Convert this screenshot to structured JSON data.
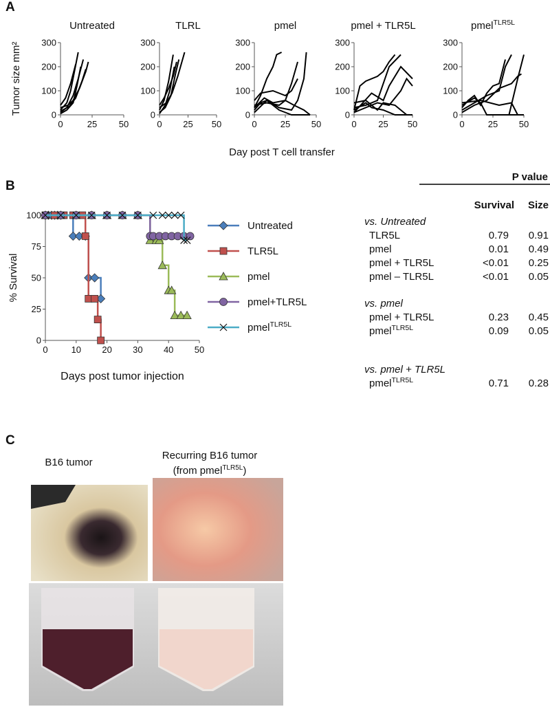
{
  "panel_labels": [
    "A",
    "B",
    "C"
  ],
  "panel_a": {
    "x_label": "Day post T cell transfer"
  },
  "chart_data": [
    {
      "type": "line",
      "title": "Untreated",
      "y_label": "Tumor size mm²",
      "xlim": [
        0,
        50
      ],
      "xticks": [
        0,
        25,
        50
      ],
      "ylim": [
        0,
        300
      ],
      "yticks": [
        0,
        100,
        200,
        300
      ],
      "series": [
        {
          "color": "#000000",
          "x": [
            0,
            5,
            8,
            11,
            14
          ],
          "values": [
            20,
            50,
            100,
            180,
            260
          ]
        },
        {
          "color": "#000000",
          "x": [
            0,
            5,
            10,
            14,
            18
          ],
          "values": [
            10,
            30,
            80,
            150,
            230
          ]
        },
        {
          "color": "#000000",
          "x": [
            0,
            6,
            10,
            15,
            20,
            22
          ],
          "values": [
            30,
            40,
            60,
            110,
            180,
            220
          ]
        },
        {
          "color": "#000000",
          "x": [
            0,
            5,
            10,
            13,
            16
          ],
          "values": [
            5,
            20,
            50,
            120,
            200
          ]
        },
        {
          "color": "#000000",
          "x": [
            0,
            4,
            8,
            12
          ],
          "values": [
            40,
            70,
            130,
            210
          ]
        },
        {
          "color": "#000000",
          "x": [
            0,
            7,
            12,
            17,
            20
          ],
          "values": [
            15,
            35,
            70,
            140,
            190
          ]
        }
      ]
    },
    {
      "type": "line",
      "title": "TLRL",
      "xlim": [
        0,
        50
      ],
      "xticks": [
        0,
        25,
        50
      ],
      "ylim": [
        0,
        300
      ],
      "yticks": [
        0,
        100,
        200,
        300
      ],
      "series": [
        {
          "color": "#000000",
          "x": [
            0,
            4,
            8,
            12
          ],
          "values": [
            20,
            60,
            140,
            250
          ]
        },
        {
          "color": "#000000",
          "x": [
            0,
            5,
            10,
            14,
            17
          ],
          "values": [
            10,
            30,
            80,
            170,
            230
          ]
        },
        {
          "color": "#000000",
          "x": [
            0,
            6,
            11,
            16,
            22
          ],
          "values": [
            30,
            50,
            90,
            160,
            260
          ]
        },
        {
          "color": "#000000",
          "x": [
            0,
            5,
            9,
            13
          ],
          "values": [
            5,
            40,
            100,
            200
          ]
        },
        {
          "color": "#000000",
          "x": [
            0,
            4,
            8,
            12,
            15
          ],
          "values": [
            40,
            70,
            110,
            160,
            220
          ]
        }
      ]
    },
    {
      "type": "line",
      "title": "pmel",
      "xlim": [
        0,
        50
      ],
      "xticks": [
        0,
        25,
        50
      ],
      "ylim": [
        0,
        300
      ],
      "yticks": [
        0,
        100,
        200,
        300
      ],
      "series": [
        {
          "color": "#000000",
          "x": [
            0,
            5,
            10,
            15,
            20,
            25,
            30,
            35,
            40,
            45
          ],
          "values": [
            20,
            50,
            60,
            40,
            20,
            10,
            0,
            0,
            0,
            0
          ]
        },
        {
          "color": "#000000",
          "x": [
            0,
            5,
            10,
            15,
            18,
            22
          ],
          "values": [
            30,
            80,
            150,
            200,
            250,
            260
          ]
        },
        {
          "color": "#000000",
          "x": [
            0,
            10,
            20,
            25,
            30,
            35
          ],
          "values": [
            40,
            50,
            40,
            60,
            130,
            220
          ]
        },
        {
          "color": "#000000",
          "x": [
            0,
            10,
            20,
            30,
            35,
            40,
            42
          ],
          "values": [
            10,
            60,
            30,
            20,
            60,
            150,
            260
          ]
        },
        {
          "color": "#000000",
          "x": [
            0,
            8,
            15,
            25,
            32,
            40,
            45
          ],
          "values": [
            30,
            70,
            50,
            60,
            40,
            20,
            0
          ]
        },
        {
          "color": "#000000",
          "x": [
            0,
            5,
            15,
            25,
            30,
            35
          ],
          "values": [
            60,
            90,
            100,
            80,
            100,
            150
          ]
        }
      ]
    },
    {
      "type": "line",
      "title": "pmel + TLR5L",
      "xlim": [
        0,
        50
      ],
      "xticks": [
        0,
        25,
        50
      ],
      "ylim": [
        0,
        300
      ],
      "yticks": [
        0,
        100,
        200,
        300
      ],
      "series": [
        {
          "color": "#000000",
          "x": [
            0,
            10,
            20,
            30,
            40,
            45,
            50
          ],
          "values": [
            10,
            30,
            50,
            40,
            100,
            150,
            120
          ]
        },
        {
          "color": "#000000",
          "x": [
            0,
            5,
            10,
            20,
            25,
            30,
            35
          ],
          "values": [
            20,
            120,
            140,
            160,
            180,
            220,
            250
          ]
        },
        {
          "color": "#000000",
          "x": [
            0,
            10,
            20,
            30,
            40
          ],
          "values": [
            30,
            40,
            60,
            200,
            250
          ]
        },
        {
          "color": "#000000",
          "x": [
            0,
            10,
            20,
            25,
            35,
            45
          ],
          "values": [
            50,
            60,
            20,
            50,
            40,
            0
          ]
        },
        {
          "color": "#000000",
          "x": [
            0,
            15,
            25,
            30,
            40,
            50
          ],
          "values": [
            10,
            90,
            60,
            120,
            200,
            150
          ]
        },
        {
          "color": "#000000",
          "x": [
            0,
            10,
            15,
            25,
            35,
            45,
            50
          ],
          "values": [
            20,
            50,
            30,
            20,
            0,
            0,
            0
          ]
        }
      ]
    },
    {
      "type": "line",
      "title": "pmel",
      "title_superscript": "TLR5L",
      "xlim": [
        0,
        50
      ],
      "xticks": [
        0,
        25,
        50
      ],
      "ylim": [
        0,
        300
      ],
      "yticks": [
        0,
        100,
        200,
        300
      ],
      "series": [
        {
          "color": "#000000",
          "x": [
            0,
            10,
            20,
            30,
            35,
            40
          ],
          "values": [
            20,
            50,
            80,
            100,
            200,
            250
          ]
        },
        {
          "color": "#000000",
          "x": [
            0,
            5,
            10,
            15,
            20,
            25,
            30,
            35
          ],
          "values": [
            30,
            60,
            80,
            40,
            90,
            120,
            130,
            230
          ]
        },
        {
          "color": "#000000",
          "x": [
            0,
            10,
            15,
            20,
            40,
            48
          ],
          "values": [
            40,
            70,
            50,
            0,
            0,
            0
          ]
        },
        {
          "color": "#000000",
          "x": [
            0,
            10,
            20,
            30,
            40,
            45,
            48
          ],
          "values": [
            10,
            40,
            60,
            110,
            130,
            160,
            170
          ]
        },
        {
          "color": "#000000",
          "x": [
            0,
            15,
            30,
            40,
            45,
            50
          ],
          "values": [
            50,
            60,
            40,
            50,
            0,
            0
          ]
        },
        {
          "color": "#000000",
          "x": [
            38,
            45,
            50
          ],
          "values": [
            0,
            150,
            250
          ]
        }
      ]
    },
    {
      "type": "line",
      "step": true,
      "x_label": "Days post tumor injection",
      "y_label": "% Survival",
      "xlim": [
        0,
        50
      ],
      "xticks": [
        0,
        10,
        20,
        30,
        40,
        50
      ],
      "ylim": [
        0,
        100
      ],
      "yticks": [
        0,
        25,
        50,
        75,
        100
      ],
      "series": [
        {
          "name": "Untreated",
          "color": "#4a7ebb",
          "marker": "diamond",
          "x": [
            0,
            1,
            2,
            3,
            4,
            5,
            9,
            11,
            13,
            14,
            16,
            18
          ],
          "values": [
            100,
            100,
            100,
            100,
            100,
            100,
            83.3,
            83.3,
            83.3,
            50,
            50,
            33.3
          ]
        },
        {
          "name": "TLR5L",
          "color": "#c0504d",
          "marker": "square",
          "x": [
            0,
            3,
            6,
            9,
            12,
            13,
            14,
            16,
            17,
            18
          ],
          "values": [
            100,
            100,
            100,
            100,
            100,
            83.3,
            33.3,
            33.3,
            16.7,
            0
          ]
        },
        {
          "name": "pmel",
          "color": "#9bbb59",
          "marker": "triangle",
          "x": [
            0,
            5,
            10,
            15,
            20,
            25,
            30,
            34,
            36,
            37,
            38,
            40,
            41,
            42,
            44,
            46
          ],
          "values": [
            100,
            100,
            100,
            100,
            100,
            100,
            100,
            80,
            80,
            80,
            60,
            40,
            40,
            20,
            20,
            20
          ]
        },
        {
          "name": "pmel+TLR5L",
          "color": "#8064a2",
          "marker": "circle",
          "x": [
            0,
            5,
            10,
            15,
            20,
            25,
            30,
            34,
            35,
            37,
            39,
            41,
            43,
            45,
            47
          ],
          "values": [
            100,
            100,
            100,
            100,
            100,
            100,
            100,
            83.3,
            83.3,
            83.3,
            83.3,
            83.3,
            83.3,
            83.3,
            83.3
          ]
        },
        {
          "name": "pmel",
          "name_superscript": "TLR5L",
          "color": "#4bacc6",
          "marker": "x",
          "x": [
            0,
            5,
            10,
            15,
            20,
            25,
            30,
            35,
            38,
            40,
            42,
            44,
            45,
            46
          ],
          "values": [
            100,
            100,
            100,
            100,
            100,
            100,
            100,
            100,
            100,
            100,
            100,
            100,
            80,
            80
          ]
        }
      ]
    }
  ],
  "p_value_table": {
    "header": "P value",
    "columns": [
      "Survival",
      "Size"
    ],
    "groups": [
      {
        "title": "vs. Untreated",
        "rows": [
          {
            "label": "TLR5L",
            "survival": 0.79,
            "size": 0.91
          },
          {
            "label": "pmel",
            "survival": 0.01,
            "size": 0.49
          },
          {
            "label": "pmel + TLR5L",
            "survival": "<0.01",
            "size": 0.25
          },
          {
            "label": "pmel – TLR5L",
            "survival": "<0.01",
            "size": 0.05
          }
        ]
      },
      {
        "title": "vs. pmel",
        "rows": [
          {
            "label": "pmel + TLR5L",
            "survival": 0.23,
            "size": 0.45
          },
          {
            "label": "pmel",
            "label_superscript": "TLR5L",
            "survival": 0.09,
            "size": 0.05
          }
        ]
      },
      {
        "title": "vs. pmel + TLR5L",
        "rows": [
          {
            "label": "pmel",
            "label_superscript": "TLR5L",
            "survival": 0.71,
            "size": 0.28
          }
        ]
      }
    ]
  },
  "photos": {
    "left_caption": "B16 tumor",
    "right_caption_line1": "Recurring B16 tumor",
    "right_caption_line2": "(from pmel",
    "right_caption_superscript": "TLR5L",
    "right_caption_end": ")"
  }
}
